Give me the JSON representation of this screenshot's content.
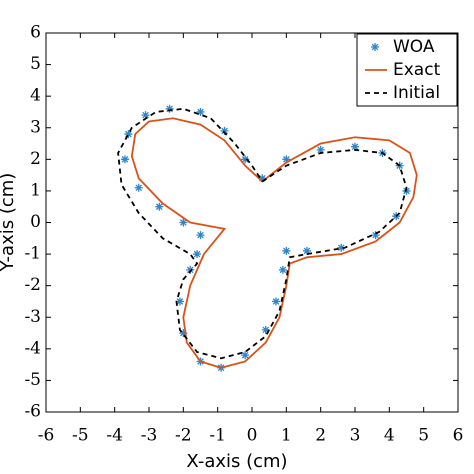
{
  "chart_data": {
    "type": "line",
    "xlabel": "X-axis (cm)",
    "ylabel": "Y-axis (cm)",
    "xlim": [
      -6,
      6
    ],
    "ylim": [
      -6,
      6
    ],
    "xticks": [
      -6,
      -5,
      -4,
      -3,
      -2,
      -1,
      0,
      1,
      2,
      3,
      4,
      5,
      6
    ],
    "yticks": [
      -6,
      -5,
      -4,
      -3,
      -2,
      -1,
      0,
      1,
      2,
      3,
      4,
      5,
      6
    ],
    "legend": "upper right",
    "grid": false,
    "series": [
      {
        "name": "WOA",
        "color": "#2f86c8",
        "style": "marker",
        "x": [
          0.3,
          1,
          2,
          3,
          3.8,
          4.3,
          4.5,
          4.2,
          3.6,
          2.6,
          1.6,
          1,
          0.9,
          0.7,
          0.4,
          -0.2,
          -0.9,
          -1.5,
          -2,
          -2.1,
          -1.8,
          -1.6,
          -1.5,
          -2,
          -2.7,
          -3.3,
          -3.7,
          -3.6,
          -3.1,
          -2.4,
          -1.5,
          -0.8,
          -0.2
        ],
        "values": [
          1.4,
          2,
          2.3,
          2.4,
          2.2,
          1.8,
          1,
          0.2,
          -0.4,
          -0.8,
          -0.9,
          -0.9,
          -1.5,
          -2.5,
          -3.4,
          -4.2,
          -4.6,
          -4.4,
          -3.5,
          -2.5,
          -1.5,
          -1,
          -0.4,
          0,
          0.5,
          1.1,
          2,
          2.8,
          3.4,
          3.6,
          3.5,
          2.9,
          2
        ]
      },
      {
        "name": "Exact",
        "color": "#d95319",
        "style": "solid",
        "x": [
          0.3,
          1,
          2,
          3,
          4,
          4.6,
          4.8,
          4.7,
          4.3,
          3.6,
          2.6,
          1.6,
          1.1,
          1,
          0.8,
          0.4,
          -0.2,
          -0.9,
          -1.5,
          -1.9,
          -2,
          -1.8,
          -1.4,
          -0.8,
          -1.8,
          -2.6,
          -3.3,
          -3.5,
          -3.4,
          -3,
          -2.3,
          -1.5,
          -0.8,
          -0.2,
          0.3
        ],
        "values": [
          1.3,
          1.9,
          2.5,
          2.7,
          2.6,
          2.2,
          1.5,
          0.8,
          0,
          -0.6,
          -1,
          -1.1,
          -1.3,
          -2,
          -3,
          -3.8,
          -4.4,
          -4.6,
          -4.4,
          -3.8,
          -3,
          -2,
          -1,
          -0.2,
          0,
          0.6,
          1.4,
          2.1,
          2.8,
          3.2,
          3.3,
          3.1,
          2.6,
          1.8,
          1.3
        ]
      },
      {
        "name": "Initial",
        "color": "#000000",
        "style": "dashed",
        "x": [
          0.3,
          1,
          2,
          3,
          3.8,
          4.3,
          4.5,
          4.3,
          3.7,
          2.7,
          1.6,
          1.1,
          1,
          0.8,
          0.4,
          -0.2,
          -0.9,
          -1.6,
          -2.1,
          -2.2,
          -2,
          -1.6,
          -1.8,
          -2.6,
          -3.3,
          -3.8,
          -3.9,
          -3.5,
          -2.8,
          -2,
          -1.2,
          -0.5,
          0,
          0.3
        ],
        "values": [
          1.3,
          1.8,
          2.2,
          2.3,
          2.2,
          1.8,
          1.1,
          0.3,
          -0.3,
          -0.8,
          -1,
          -1.1,
          -1.8,
          -2.8,
          -3.6,
          -4.1,
          -4.3,
          -4.1,
          -3.4,
          -2.5,
          -1.8,
          -1.3,
          -1,
          -0.5,
          0.3,
          1.2,
          2.2,
          3,
          3.5,
          3.6,
          3.3,
          2.5,
          1.8,
          1.3
        ]
      }
    ]
  }
}
